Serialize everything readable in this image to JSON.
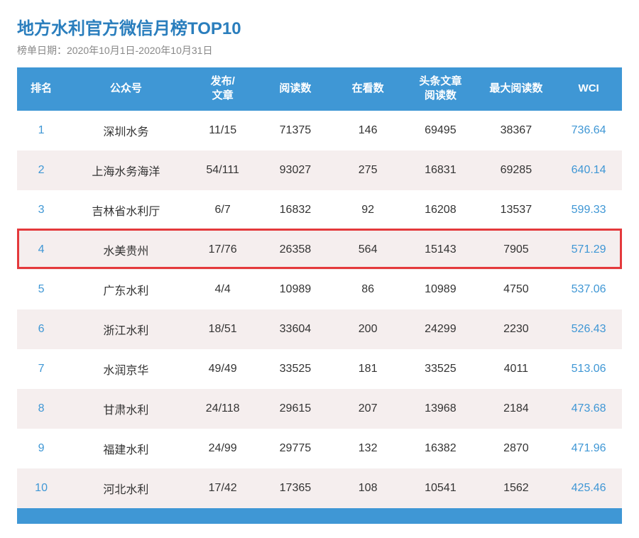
{
  "header": {
    "title": "地方水利官方微信月榜TOP10",
    "title_color": "#2a7ebd",
    "subtitle_prefix": "榜单日期：",
    "date_range": "2020年10月1日-2020年10月31日",
    "subtitle_color": "#888888"
  },
  "table": {
    "header_bg": "#3f97d5",
    "header_text_color": "#ffffff",
    "row_even_bg": "#f5eeee",
    "row_odd_bg": "#ffffff",
    "footer_bar_bg": "#3f97d5",
    "highlight_border_color": "#e4393c",
    "rank_color": "#3f97d5",
    "wci_color": "#3f97d5",
    "body_text_color": "#333333",
    "columns": [
      {
        "key": "rank",
        "label": "排名"
      },
      {
        "key": "name",
        "label": "公众号"
      },
      {
        "key": "pub",
        "label": "发布/\n文章"
      },
      {
        "key": "read",
        "label": "阅读数"
      },
      {
        "key": "look",
        "label": "在看数"
      },
      {
        "key": "head",
        "label": "头条文章\n阅读数"
      },
      {
        "key": "max",
        "label": "最大阅读数"
      },
      {
        "key": "wci",
        "label": "WCI"
      }
    ],
    "rows": [
      {
        "rank": "1",
        "name": "深圳水务",
        "pub": "11/15",
        "read": "71375",
        "look": "146",
        "head": "69495",
        "max": "38367",
        "wci": "736.64",
        "highlight": false
      },
      {
        "rank": "2",
        "name": "上海水务海洋",
        "pub": "54/111",
        "read": "93027",
        "look": "275",
        "head": "16831",
        "max": "69285",
        "wci": "640.14",
        "highlight": false
      },
      {
        "rank": "3",
        "name": "吉林省水利厅",
        "pub": "6/7",
        "read": "16832",
        "look": "92",
        "head": "16208",
        "max": "13537",
        "wci": "599.33",
        "highlight": false
      },
      {
        "rank": "4",
        "name": "水美贵州",
        "pub": "17/76",
        "read": "26358",
        "look": "564",
        "head": "15143",
        "max": "7905",
        "wci": "571.29",
        "highlight": true
      },
      {
        "rank": "5",
        "name": "广东水利",
        "pub": "4/4",
        "read": "10989",
        "look": "86",
        "head": "10989",
        "max": "4750",
        "wci": "537.06",
        "highlight": false
      },
      {
        "rank": "6",
        "name": "浙江水利",
        "pub": "18/51",
        "read": "33604",
        "look": "200",
        "head": "24299",
        "max": "2230",
        "wci": "526.43",
        "highlight": false
      },
      {
        "rank": "7",
        "name": "水润京华",
        "pub": "49/49",
        "read": "33525",
        "look": "181",
        "head": "33525",
        "max": "4011",
        "wci": "513.06",
        "highlight": false
      },
      {
        "rank": "8",
        "name": "甘肃水利",
        "pub": "24/118",
        "read": "29615",
        "look": "207",
        "head": "13968",
        "max": "2184",
        "wci": "473.68",
        "highlight": false
      },
      {
        "rank": "9",
        "name": "福建水利",
        "pub": "24/99",
        "read": "29775",
        "look": "132",
        "head": "16382",
        "max": "2870",
        "wci": "471.96",
        "highlight": false
      },
      {
        "rank": "10",
        "name": "河北水利",
        "pub": "17/42",
        "read": "17365",
        "look": "108",
        "head": "10541",
        "max": "1562",
        "wci": "425.46",
        "highlight": false
      }
    ]
  }
}
